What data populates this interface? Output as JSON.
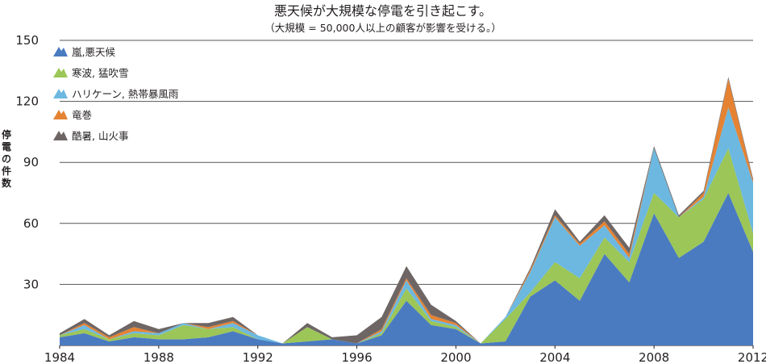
{
  "chart_data": {
    "type": "area",
    "stacked": true,
    "title": "悪天候が大規模な停電を引き起こす。",
    "subtitle": "（大規模 = 50,000人以上の顧客が影響を受ける。）",
    "ylabel": "停電の件数",
    "ylim": [
      0,
      150
    ],
    "yticks": [
      30,
      60,
      90,
      120,
      150
    ],
    "x": [
      1984,
      1985,
      1986,
      1987,
      1988,
      1989,
      1990,
      1991,
      1992,
      1993,
      1994,
      1995,
      1996,
      1997,
      1998,
      1999,
      2000,
      2001,
      2002,
      2003,
      2004,
      2005,
      2006,
      2007,
      2008,
      2009,
      2010,
      2011,
      2012
    ],
    "xticks": [
      1984,
      1988,
      1992,
      1996,
      2000,
      2004,
      2008,
      2012
    ],
    "grid": true,
    "legend_position": "top-left",
    "series": [
      {
        "name": "嵐,悪天候",
        "color": "#4a7bc1",
        "values": [
          4,
          6,
          2,
          4,
          3,
          3,
          4,
          7,
          3,
          1,
          2,
          3,
          1,
          5,
          22,
          10,
          8,
          1,
          2,
          24,
          32,
          22,
          45,
          31,
          65,
          43,
          51,
          75,
          46
        ]
      },
      {
        "name": "寒波, 猛吹雪",
        "color": "#9cc657",
        "values": [
          1,
          2,
          1,
          2,
          2,
          7,
          4,
          2,
          0,
          0,
          7,
          0,
          0,
          1,
          6,
          2,
          1,
          0,
          11,
          2,
          9,
          11,
          8,
          10,
          10,
          20,
          21,
          22,
          9
        ]
      },
      {
        "name": "ハリケーン, 熱帯暴風雨",
        "color": "#6cb8e0",
        "values": [
          0,
          2,
          0,
          1,
          1,
          1,
          0,
          2,
          2,
          0,
          0,
          0,
          0,
          1,
          4,
          1,
          1,
          0,
          1,
          10,
          22,
          16,
          6,
          2,
          22,
          0,
          1,
          20,
          25
        ]
      },
      {
        "name": "竜巻",
        "color": "#e58333",
        "values": [
          0,
          1,
          1,
          2,
          0,
          0,
          1,
          1,
          0,
          0,
          0,
          0,
          0,
          1,
          1,
          2,
          1,
          0,
          0,
          1,
          1,
          1,
          2,
          2,
          0,
          0,
          2,
          14,
          1
        ]
      },
      {
        "name": "酷暑, 山火事",
        "color": "#6e6665",
        "values": [
          1,
          2,
          1,
          3,
          2,
          0,
          2,
          2,
          0,
          0,
          2,
          1,
          4,
          6,
          6,
          5,
          1,
          0,
          0,
          1,
          3,
          1,
          3,
          3,
          1,
          1,
          1,
          1,
          1
        ]
      }
    ]
  }
}
